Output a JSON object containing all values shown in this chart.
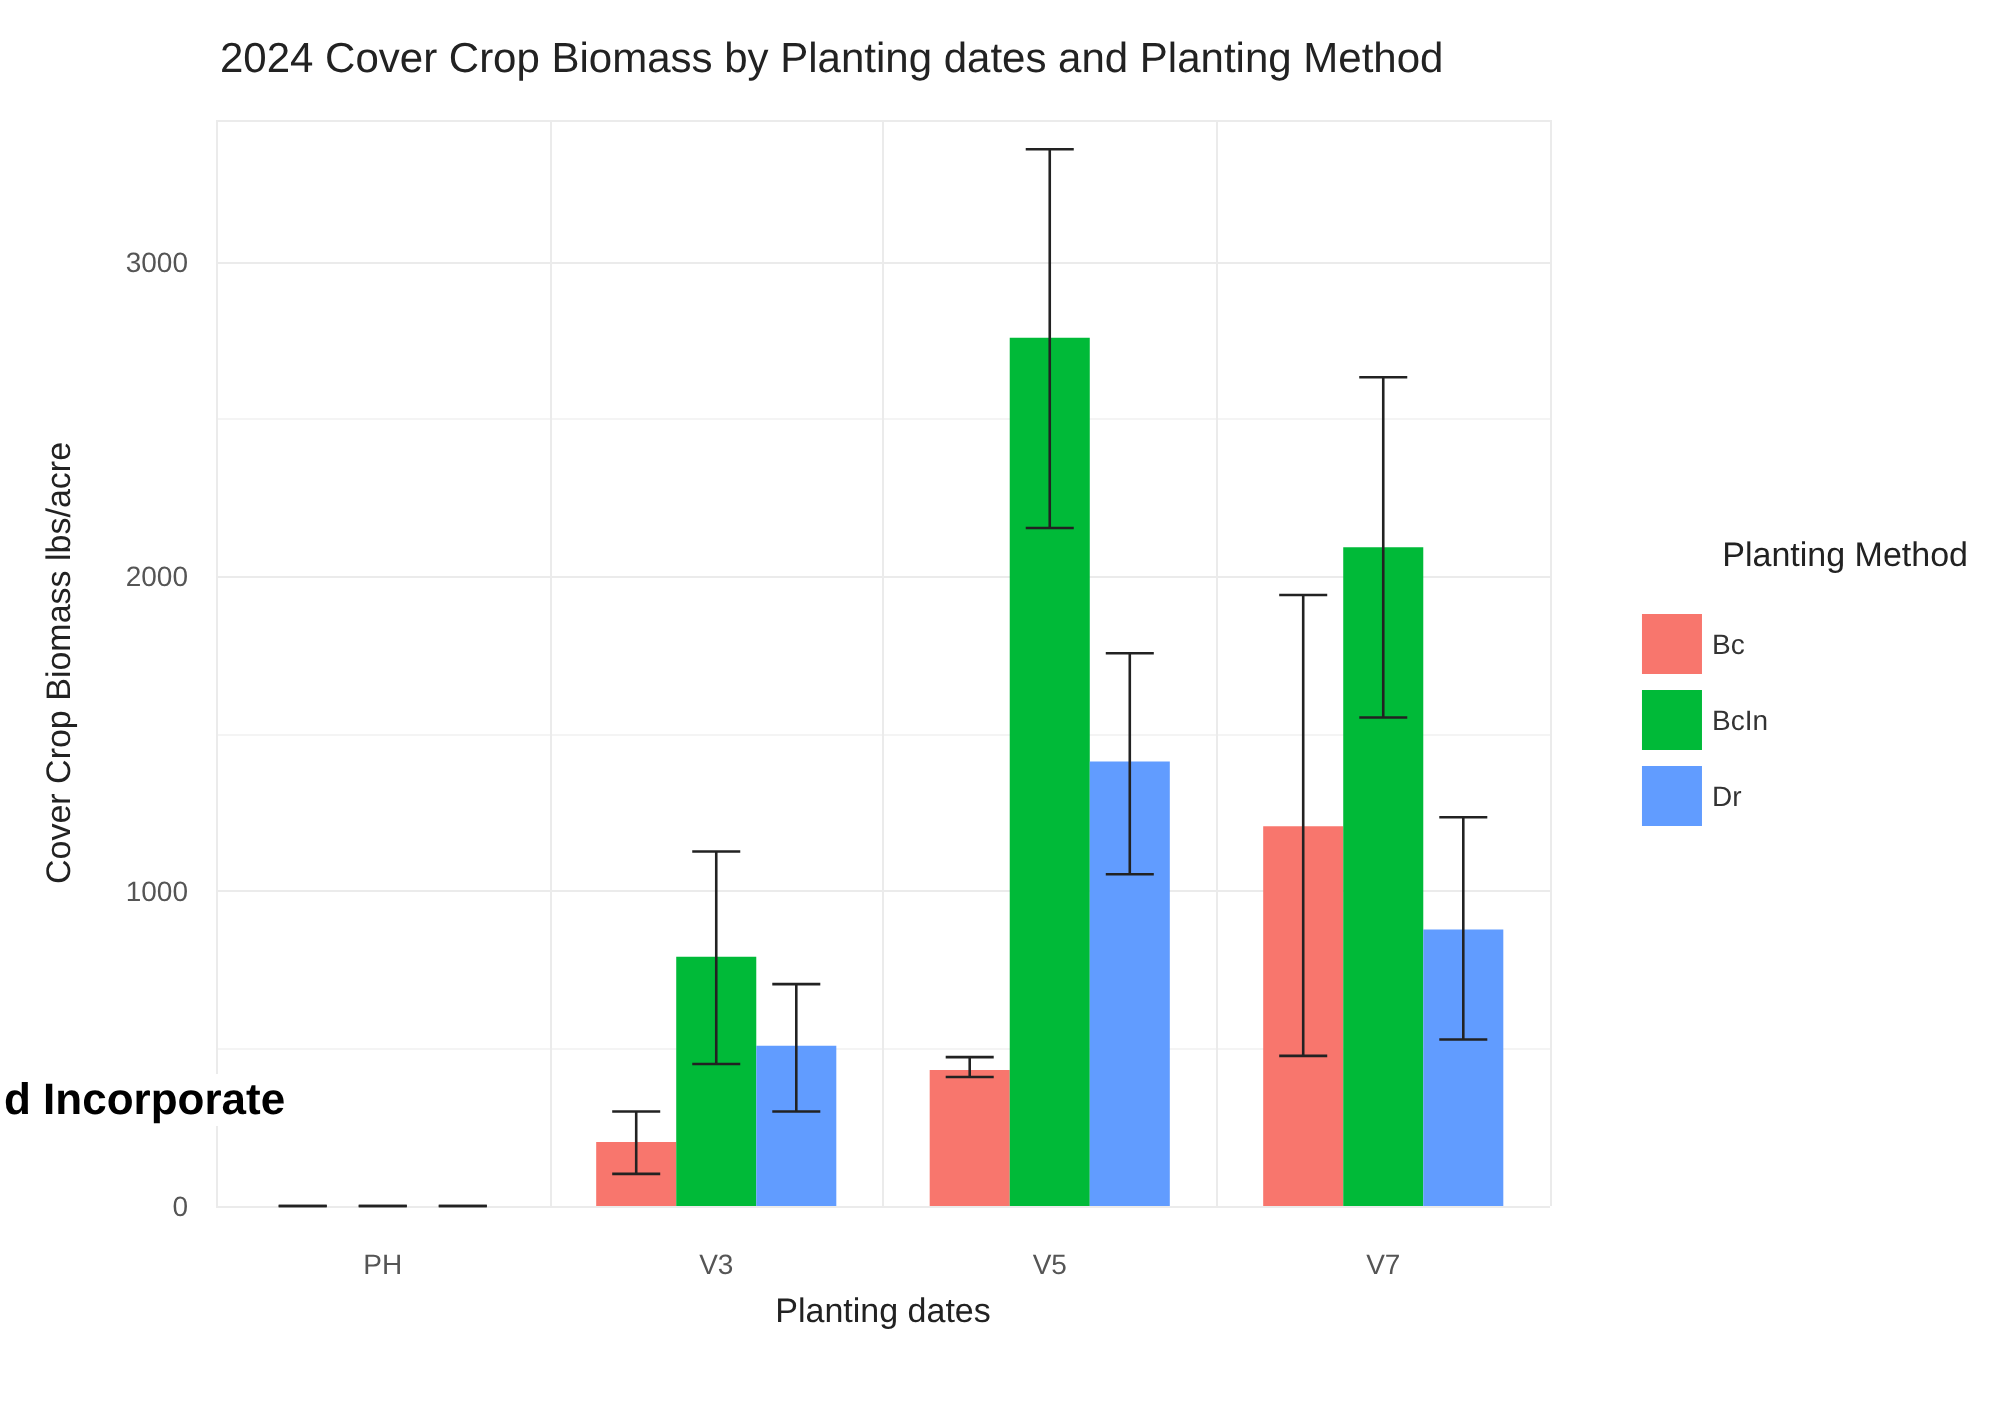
{
  "chart_data": {
    "type": "bar",
    "title": "2024 Cover Crop Biomass by Planting dates and Planting Method",
    "xlabel": "Planting dates",
    "ylabel": "Cover Crop Biomass lbs/acre",
    "legend_title": "Planting Method",
    "categories": [
      "PH",
      "V3",
      "V5",
      "V7"
    ],
    "series": [
      {
        "name": "Bc",
        "color": "#f8766d",
        "values": [
          0,
          203,
          432,
          1206
        ],
        "errors": [
          [
            0,
            0
          ],
          [
            102,
            300
          ],
          [
            410,
            473
          ],
          [
            477,
            1941
          ]
        ]
      },
      {
        "name": "BcIn",
        "color": "#00ba38",
        "values": [
          0,
          792,
          2758,
          2093
        ],
        "errors": [
          [
            0,
            0
          ],
          [
            451,
            1126
          ],
          [
            2154,
            3357
          ],
          [
            1552,
            2633
          ]
        ]
      },
      {
        "name": "Dr",
        "color": "#619cff",
        "values": [
          0,
          509,
          1412,
          878
        ],
        "errors": [
          [
            0,
            0
          ],
          [
            300,
            705
          ],
          [
            1054,
            1756
          ],
          [
            529,
            1235
          ]
        ]
      }
    ],
    "ylim": [
      0,
      3450
    ],
    "yticks": [
      0,
      1000,
      2000,
      3000
    ],
    "grid": true,
    "legend": "right",
    "annotations": [
      "d Incorporate"
    ]
  }
}
